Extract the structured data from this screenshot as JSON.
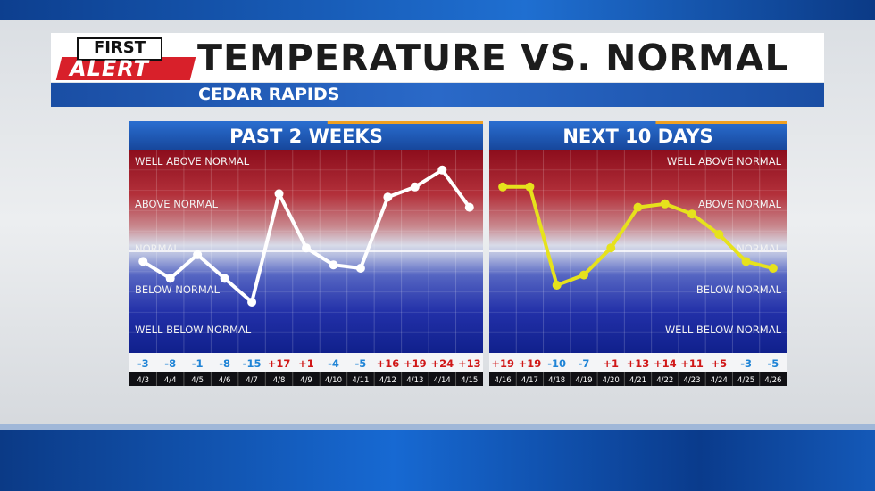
{
  "logo": {
    "first": "FIRST",
    "alert": "ALERT"
  },
  "header": {
    "title": "TEMPERATURE VS. NORMAL",
    "location": "CEDAR RAPIDS"
  },
  "zone_labels": [
    "WELL ABOVE NORMAL",
    "ABOVE NORMAL",
    "NORMAL",
    "BELOW NORMAL",
    "WELL BELOW NORMAL"
  ],
  "colors": {
    "past_line": "#ffffff",
    "next_line": "#e6e21c",
    "positive": "#d01818",
    "negative": "#1f84d6"
  },
  "chart_data": [
    {
      "type": "line",
      "title": "PAST 2 WEEKS",
      "categories": [
        "4/3",
        "4/4",
        "4/5",
        "4/6",
        "4/7",
        "4/8",
        "4/9",
        "4/10",
        "4/11",
        "4/12",
        "4/13",
        "4/14",
        "4/15"
      ],
      "values": [
        -3,
        -8,
        -1,
        -8,
        -15,
        17,
        1,
        -4,
        -5,
        16,
        19,
        24,
        13
      ],
      "value_labels": [
        "-3",
        "-8",
        "-1",
        "-8",
        "-15",
        "+17",
        "+1",
        "-4",
        "-5",
        "+16",
        "+19",
        "+24",
        "+13"
      ],
      "ylim": [
        -30,
        30
      ],
      "grid": true
    },
    {
      "type": "line",
      "title": "NEXT 10 DAYS",
      "categories": [
        "4/16",
        "4/17",
        "4/18",
        "4/19",
        "4/20",
        "4/21",
        "4/22",
        "4/23",
        "4/24",
        "4/25",
        "4/26"
      ],
      "values": [
        19,
        19,
        -10,
        -7,
        1,
        13,
        14,
        11,
        5,
        -3,
        -5
      ],
      "value_labels": [
        "+19",
        "+19",
        "-10",
        "-7",
        "+1",
        "+13",
        "+14",
        "+11",
        "+5",
        "-3",
        "-5"
      ],
      "ylim": [
        -30,
        30
      ],
      "grid": true
    }
  ]
}
